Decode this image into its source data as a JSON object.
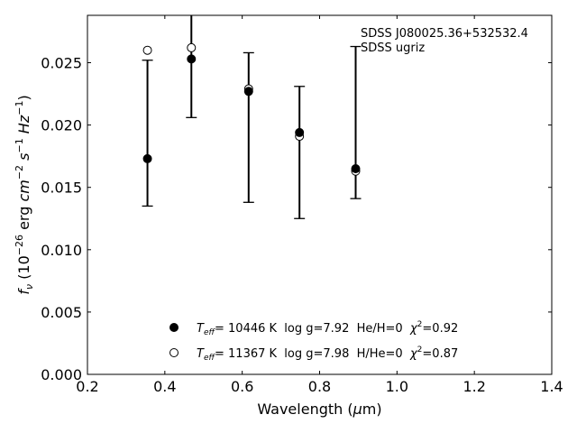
{
  "chart_data": {
    "type": "scatter",
    "xlabel": "Wavelength (μm)",
    "xlabel_pre": "Wavelength (",
    "xlabel_mu": "μ",
    "xlabel_post": "m)",
    "ylabel": "f_ν (10^-26 erg cm^-2 s^-1 Hz^-1)",
    "xlim": [
      0.2,
      1.4
    ],
    "ylim": [
      0.0,
      0.0288
    ],
    "xticks": [
      0.2,
      0.4,
      0.6,
      0.8,
      1.0,
      1.2,
      1.4
    ],
    "xtick_labels": [
      "0.2",
      "0.4",
      "0.6",
      "0.8",
      "1.0",
      "1.2",
      "1.4"
    ],
    "yticks": [
      0.0,
      0.005,
      0.01,
      0.015,
      0.02,
      0.025
    ],
    "ytick_labels": [
      "0.000",
      "0.005",
      "0.010",
      "0.015",
      "0.020",
      "0.025"
    ],
    "grid": false,
    "annotations": [
      "SDSS J080025.36+532532.4",
      "SDSS ugriz"
    ],
    "legend_position": "bottom-center",
    "observed": {
      "x": [
        0.3551,
        0.4686,
        0.6166,
        0.748,
        0.8932
      ],
      "y": [
        0.0173,
        0.0253,
        0.0227,
        0.0194,
        0.0165
      ],
      "yerr_low": [
        0.0038,
        0.0047,
        0.0089,
        0.0069,
        0.0024
      ],
      "yerr_high": [
        0.0079,
        0.0047,
        0.0031,
        0.0037,
        0.0098
      ]
    },
    "series": [
      {
        "name": "Teff= 10446 K  log g=7.92  He/H=0  χ²=0.92",
        "marker": "filled-circle",
        "x": [
          0.3551,
          0.4686,
          0.6166,
          0.748,
          0.8932
        ],
        "y": [
          0.0173,
          0.0253,
          0.0227,
          0.0194,
          0.0165
        ]
      },
      {
        "name": "Teff= 11367 K  log g=7.98  H/He=0  χ²=0.87",
        "marker": "open-circle",
        "x": [
          0.3551,
          0.4686,
          0.6166,
          0.748,
          0.8932
        ],
        "y": [
          0.026,
          0.0262,
          0.0229,
          0.0191,
          0.0163
        ]
      }
    ],
    "legend": [
      {
        "t": "T",
        "sub": "eff",
        "rest": "= 10446 K  log g=7.92  He/H=0  ",
        "chi": "χ",
        "sup": "2",
        "tail": "=0.92"
      },
      {
        "t": "T",
        "sub": "eff",
        "rest": "= 11367 K  log g=7.98  H/He=0  ",
        "chi": "χ",
        "sup": "2",
        "tail": "=0.87"
      }
    ]
  }
}
